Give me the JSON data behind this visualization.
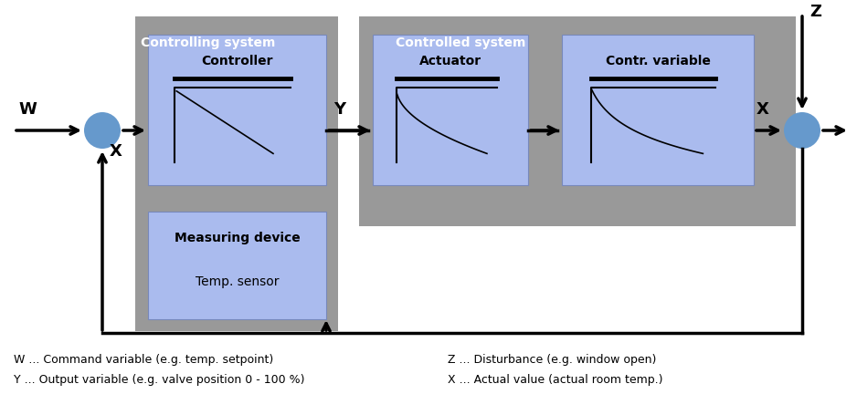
{
  "bg_color": "#ffffff",
  "gray_color": "#999999",
  "blue_box_color": "#aabbee",
  "blue_circle_color": "#6699cc",
  "controlling_system_label": "Controlling system",
  "controlled_system_label": "Controlled system",
  "controller_label": "Controller",
  "measuring_label1": "Measuring device",
  "measuring_label2": "Temp. sensor",
  "actuator_label": "Actuator",
  "contr_var_label": "Contr. variable",
  "ann1": "W ... Command variable (e.g. temp. setpoint)",
  "ann2": "Y ... Output variable (e.g. valve position 0 - 100 %)",
  "ann3": "Z ... Disturbance (e.g. window open)",
  "ann4": "X ... Actual value (actual room temp.)"
}
